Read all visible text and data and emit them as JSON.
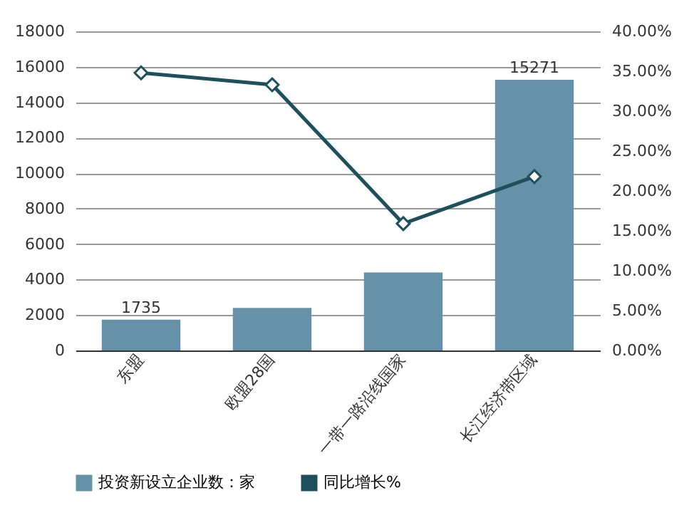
{
  "chart_data": {
    "type": "bar",
    "categories": [
      "东盟",
      "欧盟28国",
      "一带一路沿线国家",
      "长江经济带区域"
    ],
    "series": [
      {
        "name": "投资新设立企业数：家",
        "color": "#6592a9",
        "values": [
          1735,
          2400,
          4400,
          15271
        ],
        "value_labels": [
          "1735",
          null,
          null,
          "15271"
        ]
      },
      {
        "name": "同比增长%",
        "type": "line",
        "axis": "y2",
        "color": "#1d4f5c",
        "values": [
          34.8,
          33.3,
          15.9,
          21.8
        ]
      }
    ],
    "ylim": [
      0,
      18000
    ],
    "yticks": [
      0,
      2000,
      4000,
      6000,
      8000,
      10000,
      12000,
      14000,
      16000,
      18000
    ],
    "y2lim": [
      0,
      40
    ],
    "y2ticks": [
      {
        "value": 0,
        "label": "0.00%"
      },
      {
        "value": 5,
        "label": "5.00%"
      },
      {
        "value": 10,
        "label": "10.00%"
      },
      {
        "value": 15,
        "label": "15.00%"
      },
      {
        "value": 20,
        "label": "20.00%"
      },
      {
        "value": 25,
        "label": "25.00%"
      },
      {
        "value": 30,
        "label": "30.00%"
      },
      {
        "value": 35,
        "label": "35.00%"
      },
      {
        "value": 40,
        "label": "40.00%"
      }
    ],
    "grid": "y",
    "legend": "bottom",
    "marker": "diamond",
    "line_style": "solid"
  }
}
